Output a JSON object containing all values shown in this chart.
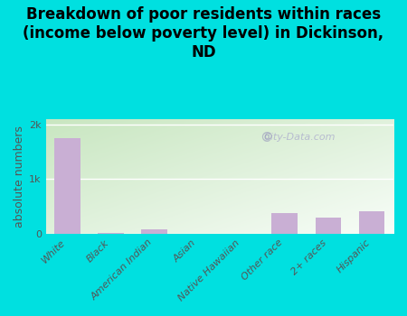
{
  "title": "Breakdown of poor residents within races\n(income below poverty level) in Dickinson,\nND",
  "categories": [
    "White",
    "Black",
    "American Indian",
    "Asian",
    "Native Hawaiian",
    "Other race",
    "2+ races",
    "Hispanic"
  ],
  "values": [
    1750,
    10,
    80,
    0,
    0,
    380,
    290,
    410
  ],
  "bar_color": "#c9afd4",
  "ylabel": "absolute numbers",
  "background_color": "#00e0e0",
  "plot_bg_topleft": "#c8e6c0",
  "plot_bg_bottomright": "#f8fdf5",
  "ylim": [
    0,
    2100
  ],
  "yticks": [
    0,
    1000,
    2000
  ],
  "ytick_labels": [
    "0",
    "1k",
    "2k"
  ],
  "title_fontsize": 12,
  "axis_label_fontsize": 9,
  "tick_fontsize": 8,
  "watermark": "City-Data.com"
}
